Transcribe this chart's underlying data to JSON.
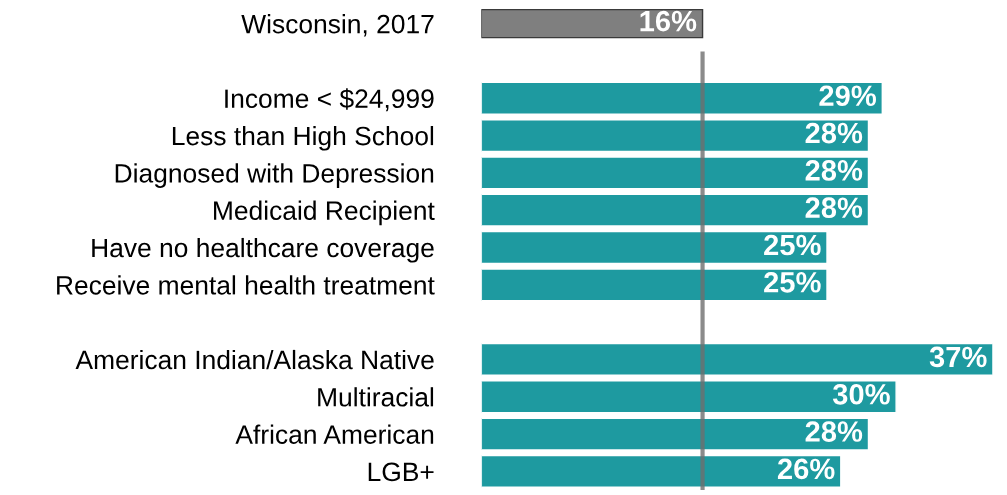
{
  "chart_data": {
    "type": "bar",
    "orientation": "horizontal",
    "categories": [
      "Wisconsin, 2017",
      null,
      "Income < $24,999",
      "Less than High School",
      "Diagnosed with Depression",
      "Medicaid Recipient",
      "Have no healthcare coverage",
      "Receive mental health treatment",
      null,
      "American Indian/Alaska Native",
      "Multiracial",
      "African American",
      "LGB+"
    ],
    "values": [
      16,
      null,
      29,
      28,
      28,
      28,
      25,
      25,
      null,
      37,
      30,
      28,
      26
    ],
    "colors": [
      "#7f7f7f",
      null,
      "#1e9aa0",
      "#1e9aa0",
      "#1e9aa0",
      "#1e9aa0",
      "#1e9aa0",
      "#1e9aa0",
      null,
      "#1e9aa0",
      "#1e9aa0",
      "#1e9aa0",
      "#1e9aa0"
    ],
    "value_labels": [
      "16%",
      null,
      "29%",
      "28%",
      "28%",
      "28%",
      "25%",
      "25%",
      null,
      "37%",
      "30%",
      "28%",
      "26%"
    ],
    "xlim": [
      0,
      37
    ],
    "tick_labels": "y",
    "grid": false,
    "ref_lines": [
      {
        "axis": "x",
        "value": 16,
        "color": "#6e6e6e"
      }
    ]
  }
}
